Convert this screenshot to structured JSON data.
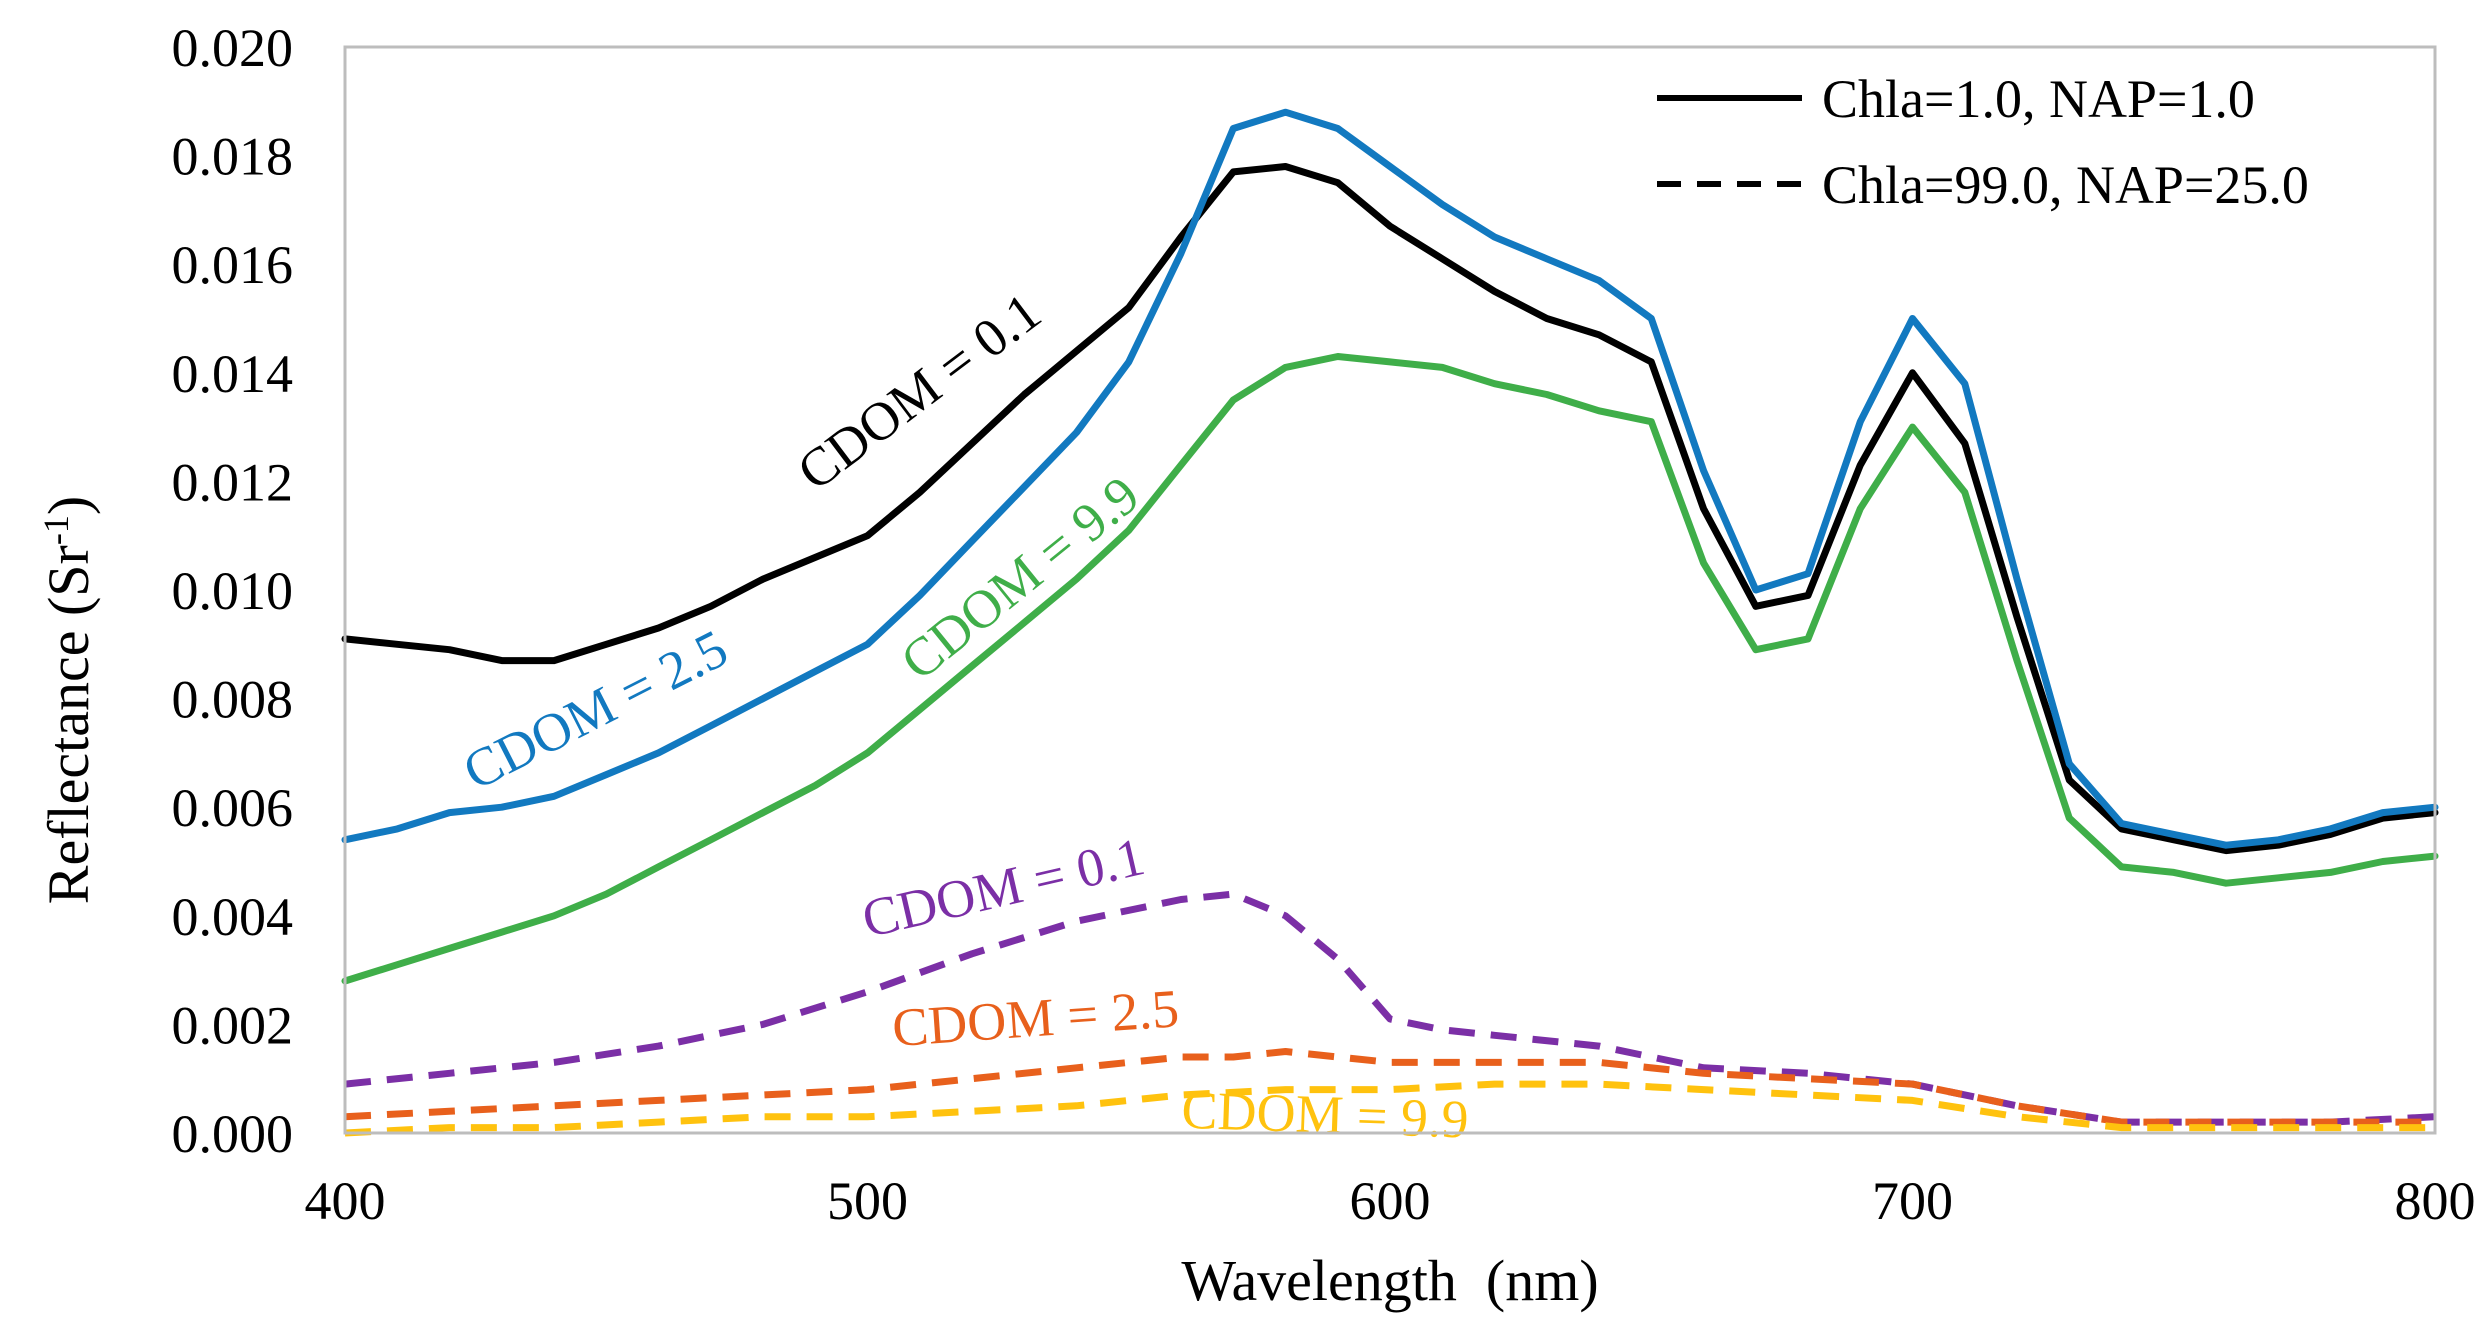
{
  "chart_data": {
    "type": "line",
    "title": "",
    "xlabel": "Wavelength  (nm)",
    "ylabel_main": "Reflectance (Sr",
    "ylabel_sup": "-1",
    "ylabel_close": ")",
    "xlim": [
      400,
      800
    ],
    "ylim": [
      0,
      0.02
    ],
    "xticks": [
      400,
      500,
      600,
      700,
      800
    ],
    "xtick_labels": [
      "400",
      "500",
      "600",
      "700",
      "800"
    ],
    "yticks": [
      0,
      0.002,
      0.004,
      0.006,
      0.008,
      0.01,
      0.012,
      0.014,
      0.016,
      0.018,
      0.02
    ],
    "ytick_labels": [
      "0.000",
      "0.002",
      "0.004",
      "0.006",
      "0.008",
      "0.010",
      "0.012",
      "0.014",
      "0.016",
      "0.018",
      "0.020"
    ],
    "grid": false,
    "legend_position": "top-right",
    "legend": [
      {
        "label": "Chla=1.0, NAP=1.0",
        "style": "solid"
      },
      {
        "label": "Chla=99.0, NAP=25.0",
        "style": "dashed"
      }
    ],
    "series": [
      {
        "name": "Chla=1.0, NAP=1.0, CDOM = 0.1",
        "color": "#000000",
        "style": "solid",
        "x": [
          400,
          410,
          420,
          430,
          440,
          450,
          460,
          470,
          480,
          490,
          500,
          510,
          520,
          530,
          540,
          550,
          560,
          570,
          580,
          590,
          600,
          610,
          620,
          630,
          640,
          650,
          660,
          670,
          680,
          690,
          700,
          710,
          720,
          730,
          740,
          750,
          760,
          770,
          780,
          790,
          800
        ],
        "y": [
          0.0091,
          0.009,
          0.0089,
          0.0087,
          0.0087,
          0.009,
          0.0093,
          0.0097,
          0.0102,
          0.0106,
          0.011,
          0.0118,
          0.0127,
          0.0136,
          0.0144,
          0.0152,
          0.0165,
          0.0177,
          0.0178,
          0.0175,
          0.0167,
          0.0161,
          0.0155,
          0.015,
          0.0147,
          0.0142,
          0.0115,
          0.0097,
          0.0099,
          0.0123,
          0.014,
          0.0127,
          0.0095,
          0.0065,
          0.0056,
          0.0054,
          0.0052,
          0.0053,
          0.0055,
          0.0058,
          0.0059
        ]
      },
      {
        "name": "Chla=1.0, NAP=1.0, CDOM = 2.5",
        "color": "#1279c0",
        "style": "solid",
        "x": [
          400,
          410,
          420,
          430,
          440,
          450,
          460,
          470,
          480,
          490,
          500,
          510,
          520,
          530,
          540,
          550,
          560,
          570,
          580,
          590,
          600,
          610,
          620,
          630,
          640,
          650,
          660,
          670,
          680,
          690,
          700,
          710,
          720,
          730,
          740,
          750,
          760,
          770,
          780,
          790,
          800
        ],
        "y": [
          0.0054,
          0.0056,
          0.0059,
          0.006,
          0.0062,
          0.0066,
          0.007,
          0.0075,
          0.008,
          0.0085,
          0.009,
          0.0099,
          0.0109,
          0.0119,
          0.0129,
          0.0142,
          0.0162,
          0.0185,
          0.0188,
          0.0185,
          0.0178,
          0.0171,
          0.0165,
          0.0161,
          0.0157,
          0.015,
          0.0122,
          0.01,
          0.0103,
          0.0131,
          0.015,
          0.0138,
          0.0102,
          0.0068,
          0.0057,
          0.0055,
          0.0053,
          0.0054,
          0.0056,
          0.0059,
          0.006
        ]
      },
      {
        "name": "Chla=1.0, NAP=1.0, CDOM = 9.9",
        "color": "#3fae49",
        "style": "solid",
        "x": [
          400,
          410,
          420,
          430,
          440,
          450,
          460,
          470,
          480,
          490,
          500,
          510,
          520,
          530,
          540,
          550,
          560,
          570,
          580,
          590,
          600,
          610,
          620,
          630,
          640,
          650,
          660,
          670,
          680,
          690,
          700,
          710,
          720,
          730,
          740,
          750,
          760,
          770,
          780,
          790,
          800
        ],
        "y": [
          0.0028,
          0.0031,
          0.0034,
          0.0037,
          0.004,
          0.0044,
          0.0049,
          0.0054,
          0.0059,
          0.0064,
          0.007,
          0.0078,
          0.0086,
          0.0094,
          0.0102,
          0.0111,
          0.0123,
          0.0135,
          0.0141,
          0.0143,
          0.0142,
          0.0141,
          0.0138,
          0.0136,
          0.0133,
          0.0131,
          0.0105,
          0.0089,
          0.0091,
          0.0115,
          0.013,
          0.0118,
          0.0087,
          0.0058,
          0.0049,
          0.0048,
          0.0046,
          0.0047,
          0.0048,
          0.005,
          0.0051
        ]
      },
      {
        "name": "Chla=99.0, NAP=25.0, CDOM = 0.1",
        "color": "#7b2fa6",
        "style": "dashed",
        "x": [
          400,
          420,
          440,
          460,
          480,
          500,
          520,
          540,
          560,
          570,
          580,
          590,
          600,
          610,
          620,
          640,
          660,
          680,
          700,
          720,
          740,
          760,
          780,
          800
        ],
        "y": [
          0.0009,
          0.0011,
          0.0013,
          0.0016,
          0.002,
          0.0026,
          0.0033,
          0.0039,
          0.0043,
          0.0044,
          0.004,
          0.0032,
          0.0021,
          0.0019,
          0.0018,
          0.0016,
          0.0012,
          0.0011,
          0.0009,
          0.0005,
          0.0002,
          0.0002,
          0.0002,
          0.0003
        ]
      },
      {
        "name": "Chla=99.0, NAP=25.0, CDOM = 2.5",
        "color": "#e8601c",
        "style": "dashed",
        "x": [
          400,
          420,
          440,
          460,
          480,
          500,
          520,
          540,
          560,
          570,
          580,
          590,
          600,
          620,
          640,
          660,
          680,
          700,
          720,
          740,
          760,
          780,
          800
        ],
        "y": [
          0.0003,
          0.0004,
          0.0005,
          0.0006,
          0.0007,
          0.0008,
          0.001,
          0.0012,
          0.0014,
          0.0014,
          0.0015,
          0.0014,
          0.0013,
          0.0013,
          0.0013,
          0.0011,
          0.001,
          0.0009,
          0.0005,
          0.0002,
          0.0002,
          0.0002,
          0.0002
        ]
      },
      {
        "name": "Chla=99.0, NAP=25.0, CDOM = 9.9",
        "color": "#ffc20e",
        "style": "dashed",
        "x": [
          400,
          420,
          440,
          460,
          480,
          500,
          520,
          540,
          560,
          580,
          600,
          620,
          640,
          660,
          680,
          700,
          720,
          740,
          760,
          780,
          800
        ],
        "y": [
          0.0,
          0.0001,
          0.0001,
          0.0002,
          0.0003,
          0.0003,
          0.0004,
          0.0005,
          0.0007,
          0.0008,
          0.0008,
          0.0009,
          0.0009,
          0.0008,
          0.0007,
          0.0006,
          0.0003,
          0.0001,
          0.0001,
          0.0001,
          0.0001
        ]
      }
    ],
    "annotations": [
      {
        "text": "CDOM = 0.1",
        "color": "#000000",
        "x": 490,
        "y": 0.0118,
        "angle": -37
      },
      {
        "text": "CDOM = 2.5",
        "color": "#1279c0",
        "x": 425,
        "y": 0.0063,
        "angle": -27
      },
      {
        "text": "CDOM = 9.9",
        "color": "#3fae49",
        "x": 510,
        "y": 0.0083,
        "angle": -39
      },
      {
        "text": "CDOM = 0.1",
        "color": "#7b2fa6",
        "x": 500,
        "y": 0.0036,
        "angle": -13
      },
      {
        "text": "CDOM = 2.5",
        "color": "#e8601c",
        "x": 505,
        "y": 0.0016,
        "angle": -4
      },
      {
        "text": "CDOM = 9.9",
        "color": "#ffc20e",
        "x": 560,
        "y": 0.0001,
        "angle": 2
      }
    ]
  }
}
